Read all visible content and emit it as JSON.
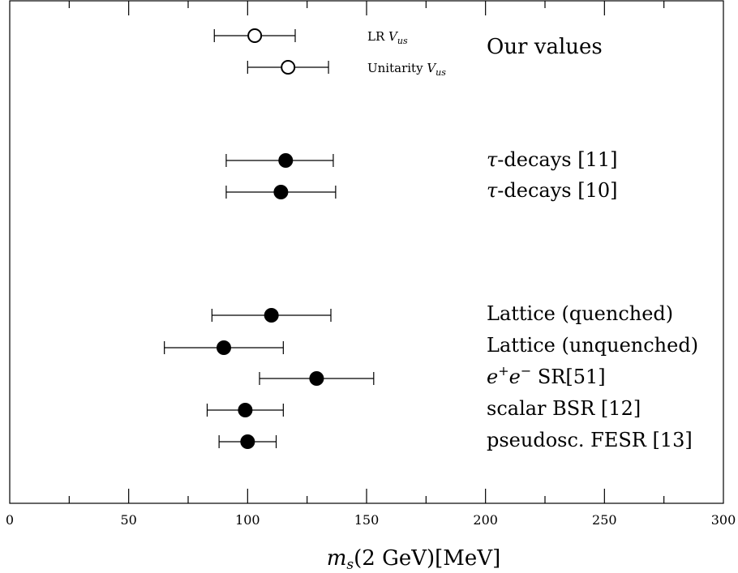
{
  "chart_data": {
    "type": "scatter",
    "xlabel": "m_s(2 GeV)[MeV]",
    "xlim": [
      0,
      300
    ],
    "x_ticks": [
      0,
      50,
      100,
      150,
      200,
      250,
      300
    ],
    "x_tick_labels": [
      "0",
      "50",
      "100",
      "150",
      "200",
      "250",
      "300"
    ],
    "group_labels": [
      "Our values"
    ],
    "series": [
      {
        "marker": "open-circle",
        "points": [
          {
            "label": "LR V_us",
            "value": 103,
            "err_low": 86,
            "err_high": 120
          },
          {
            "label": "Unitarity V_us",
            "value": 117,
            "err_low": 100,
            "err_high": 134
          }
        ]
      },
      {
        "marker": "filled-circle",
        "points": [
          {
            "label": "τ-decays [11]",
            "value": 116,
            "err_low": 91,
            "err_high": 136
          },
          {
            "label": "τ-decays [10]",
            "value": 114,
            "err_low": 91,
            "err_high": 137
          },
          {
            "label": "Lattice (quenched)",
            "value": 110,
            "err_low": 85,
            "err_high": 135
          },
          {
            "label": "Lattice (unquenched)",
            "value": 90,
            "err_low": 65,
            "err_high": 115
          },
          {
            "label": "e⁺e⁻ SR[51]",
            "value": 129,
            "err_low": 105,
            "err_high": 153
          },
          {
            "label": "scalar BSR [12]",
            "value": 99,
            "err_low": 83,
            "err_high": 115
          },
          {
            "label": "pseudosc. FESR [13]",
            "value": 100,
            "err_low": 88,
            "err_high": 112
          }
        ]
      }
    ],
    "colors": {
      "axis": "#000000",
      "marker": "#000000",
      "background": "#ffffff"
    }
  }
}
